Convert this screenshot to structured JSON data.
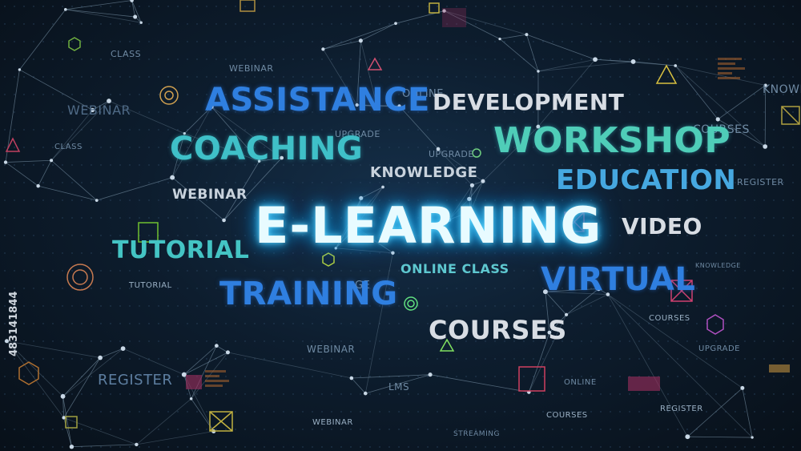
{
  "hero": "E-LEARNING",
  "words": {
    "assistance": "ASSISTANCE",
    "coaching": "COACHING",
    "development": "DEVELOPMENT",
    "workshop": "WORKSHOP",
    "education": "EDUCATION",
    "knowledge": "KNOWLEDGE",
    "webinar": "WEBINAR",
    "tutorial": "TUTORIAL",
    "training": "TRAINING",
    "online_class": "ONLINE CLASS",
    "video": "VIDEO",
    "virtual": "VIRTUAL",
    "courses": "COURSES"
  },
  "faint_words": {
    "class": "CLASS",
    "webinar_top": "WEBINAR",
    "webinar_left": "WEBINAR",
    "online": "ONLINE",
    "upgrade_a": "UPGRADE",
    "upgrade_b": "UPGRADE",
    "courses_right": "COURSES",
    "knowl": "KNOWL",
    "register_right": "REGISTER",
    "register_left": "REGISTER",
    "tutorial_small": "TUTORIAL",
    "webinar_bottom": "WEBINAR",
    "webinar_low": "WEBINAR",
    "lms": "LMS",
    "online_low": "ONLINE",
    "courses_low": "COURSES",
    "streaming": "STREAMING",
    "courses_mid": "COURSES",
    "upgrade_c": "UPGRADE",
    "register_low": "REGISTER",
    "knowledge_small": "KNOWLEDGE",
    "class_left": "CLASS",
    "ge": "GE"
  },
  "stock_id": "483141844",
  "colors": {
    "background": "#0d1d2e",
    "glow": "#1aa6e8",
    "blue": "#2f7fe0",
    "teal": "#3fc0c8"
  }
}
